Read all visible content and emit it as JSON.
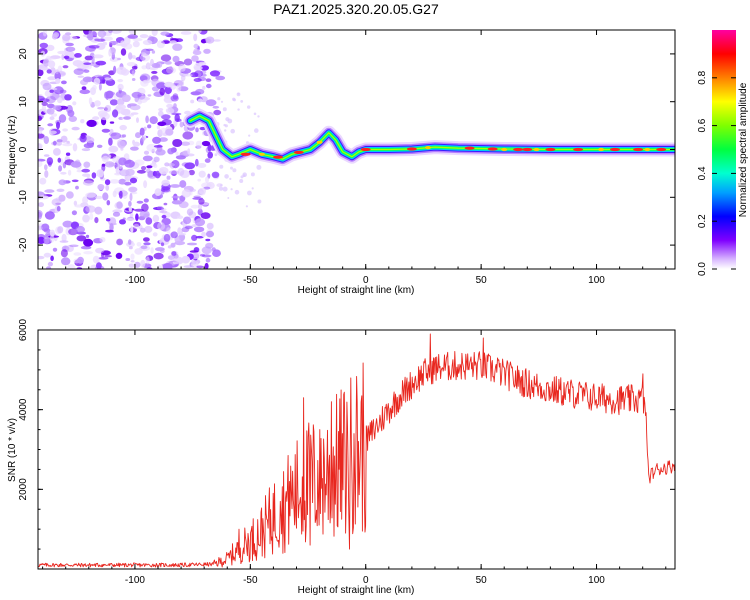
{
  "title": "PAZ1.2025.320.20.05.G27",
  "colors": {
    "snr_line": "#e8261e",
    "background": "#ffffff"
  },
  "chart_data": [
    {
      "type": "heatmap",
      "name": "spectrogram",
      "xlabel": "Height of straight line (km)",
      "ylabel": "Frequency (Hz)",
      "xlim": [
        -142,
        134
      ],
      "ylim": [
        -25,
        25
      ],
      "xticks": [
        -100,
        -50,
        0,
        50,
        100
      ],
      "yticks": [
        -20,
        -10,
        0,
        10,
        20
      ],
      "noise_region_km": [
        -142,
        -67
      ],
      "ridge": {
        "description": "carrier frequency ridge vs height",
        "points": [
          [
            -76,
            6
          ],
          [
            -72,
            7
          ],
          [
            -68,
            6
          ],
          [
            -65,
            3
          ],
          [
            -62,
            0
          ],
          [
            -58,
            -1.5
          ],
          [
            -55,
            -1
          ],
          [
            -50,
            0
          ],
          [
            -45,
            -1
          ],
          [
            -40,
            -1.5
          ],
          [
            -36,
            -2
          ],
          [
            -32,
            -1
          ],
          [
            -28,
            -0.5
          ],
          [
            -24,
            0
          ],
          [
            -20,
            1.5
          ],
          [
            -16,
            3.5
          ],
          [
            -13,
            2
          ],
          [
            -10,
            -0.5
          ],
          [
            -6,
            -1.5
          ],
          [
            -3,
            -0.5
          ],
          [
            0,
            0
          ],
          [
            10,
            0
          ],
          [
            20,
            0.1
          ],
          [
            30,
            0.5
          ],
          [
            40,
            0.3
          ],
          [
            60,
            0.1
          ],
          [
            80,
            0
          ],
          [
            100,
            0
          ],
          [
            120,
            0
          ],
          [
            134,
            0
          ]
        ]
      },
      "colorbar": {
        "label": "Normalized spectral amplitude",
        "range": [
          0.0,
          1.0
        ],
        "ticks": [
          "0.0",
          "0.2",
          "0.4",
          "0.6",
          "0.8"
        ]
      }
    },
    {
      "type": "line",
      "name": "snr",
      "xlabel": "Height of straight line (km)",
      "ylabel": "SNR (10 * v/v)",
      "xlim": [
        -142,
        134
      ],
      "ylim": [
        0,
        6000
      ],
      "xticks": [
        -100,
        -50,
        0,
        50,
        100
      ],
      "yticks": [
        2000,
        4000,
        6000
      ],
      "series": [
        {
          "name": "SNR",
          "envelope": {
            "x": [
              -142,
              -80,
              -66,
              -60,
              -55,
              -50,
              -45,
              -40,
              -35,
              -30,
              -25,
              -20,
              -15,
              -10,
              -5,
              0,
              5,
              10,
              15,
              20,
              25,
              30,
              40,
              50,
              60,
              70,
              80,
              90,
              100,
              110,
              120,
              121.5,
              122.5,
              126,
              130,
              134
            ],
            "y": [
              100,
              100,
              120,
              250,
              500,
              700,
              950,
              1300,
              1600,
              1900,
              2150,
              2300,
              2450,
              2650,
              2900,
              3200,
              3600,
              4000,
              4350,
              4650,
              4900,
              5050,
              5100,
              5100,
              4900,
              4650,
              4500,
              4400,
              4300,
              4250,
              4250,
              3800,
              2300,
              2500,
              2550,
              2600
            ]
          },
          "spikes": [
            [
              -55,
              1000
            ],
            [
              -52,
              800
            ],
            [
              -40,
              1900
            ],
            [
              -37,
              1700
            ],
            [
              -33,
              2200
            ],
            [
              -27,
              4300
            ],
            [
              -24,
              600
            ],
            [
              -20,
              3500
            ],
            [
              -15,
              4200
            ],
            [
              -10,
              3400
            ],
            [
              -7,
              500
            ],
            [
              -5,
              3400
            ],
            [
              28,
              5900
            ],
            [
              51,
              5800
            ],
            [
              57,
              5300
            ],
            [
              120,
              4900
            ]
          ]
        }
      ]
    }
  ]
}
